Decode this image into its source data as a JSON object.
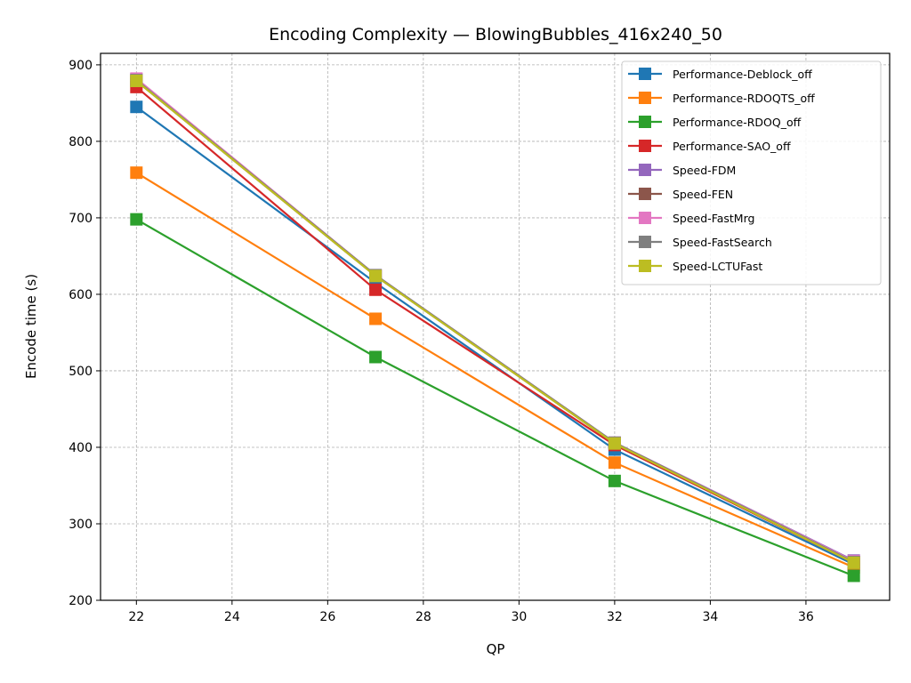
{
  "chart_data": {
    "type": "line",
    "title": "Encoding Complexity — BlowingBubbles_416x240_50",
    "xlabel": "QP",
    "ylabel": "Encode time (s)",
    "xlim": [
      21.25,
      37.75
    ],
    "ylim": [
      200,
      915
    ],
    "xticks": [
      22,
      24,
      26,
      28,
      30,
      32,
      34,
      36
    ],
    "yticks": [
      200,
      300,
      400,
      500,
      600,
      700,
      800,
      900
    ],
    "grid": true,
    "legend_position": "top-right",
    "x": [
      22,
      27,
      32,
      37
    ],
    "series": [
      {
        "name": "Performance-Deblock_off",
        "color": "#1f77b4",
        "values": [
          845,
          615,
          397,
          247
        ]
      },
      {
        "name": "Performance-RDOQTS_off",
        "color": "#ff7f0e",
        "values": [
          759,
          568,
          380,
          243
        ]
      },
      {
        "name": "Performance-RDOQ_off",
        "color": "#2ca02c",
        "values": [
          698,
          518,
          356,
          232
        ]
      },
      {
        "name": "Performance-SAO_off",
        "color": "#d62728",
        "values": [
          871,
          606,
          403,
          249
        ]
      },
      {
        "name": "Speed-FDM",
        "color": "#9467bd",
        "values": [
          881,
          625,
          406,
          252
        ]
      },
      {
        "name": "Speed-FEN",
        "color": "#8c564b",
        "values": [
          879,
          624,
          405,
          250
        ]
      },
      {
        "name": "Speed-FastMrg",
        "color": "#e377c2",
        "values": [
          882,
          625,
          406,
          251
        ]
      },
      {
        "name": "Speed-FastSearch",
        "color": "#7f7f7f",
        "values": [
          880,
          625,
          406,
          250
        ]
      },
      {
        "name": "Speed-LCTUFast",
        "color": "#bcbd22",
        "values": [
          879,
          624,
          405,
          249
        ]
      }
    ]
  }
}
